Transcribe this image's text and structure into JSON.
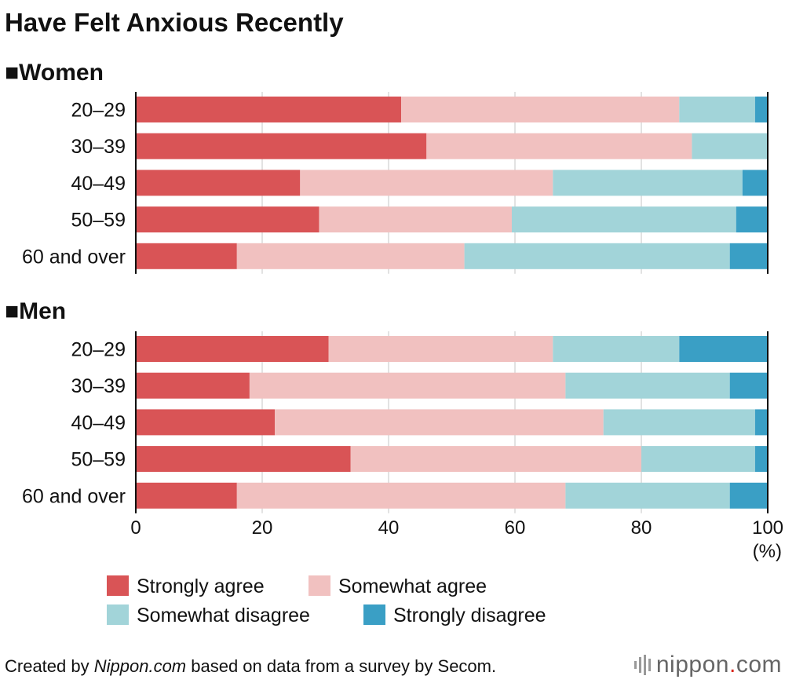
{
  "chart_data": {
    "type": "bar",
    "orientation": "horizontal",
    "stacked": true,
    "title": "Have Felt Anxious Recently",
    "xlim": [
      0,
      100
    ],
    "xticks": [
      "0",
      "20",
      "40",
      "60",
      "80",
      "100"
    ],
    "xunit": "(%)",
    "legend": [
      "Strongly agree",
      "Somewhat agree",
      "Somewhat disagree",
      "Strongly disagree"
    ],
    "colors": [
      "#d95456",
      "#f1c1c0",
      "#a2d4d9",
      "#3a9fc5"
    ],
    "panels": [
      {
        "label": "■Women",
        "categories": [
          "20–29",
          "30–39",
          "40–49",
          "50–59",
          "60 and over"
        ],
        "series": [
          {
            "name": "Strongly agree",
            "values": [
              42,
              46,
              26,
              29,
              16
            ]
          },
          {
            "name": "Somewhat agree",
            "values": [
              44,
              42,
              40,
              30.5,
              36
            ]
          },
          {
            "name": "Somewhat disagree",
            "values": [
              12,
              12,
              30,
              35.5,
              42
            ]
          },
          {
            "name": "Strongly disagree",
            "values": [
              2,
              0,
              4,
              5,
              6
            ]
          }
        ]
      },
      {
        "label": "■Men",
        "categories": [
          "20–29",
          "30–39",
          "40–49",
          "50–59",
          "60 and over"
        ],
        "series": [
          {
            "name": "Strongly agree",
            "values": [
              30.5,
              18,
              22,
              34,
              16
            ]
          },
          {
            "name": "Somewhat agree",
            "values": [
              35.5,
              50,
              52,
              46,
              52
            ]
          },
          {
            "name": "Somewhat disagree",
            "values": [
              20,
              26,
              24,
              18,
              26
            ]
          },
          {
            "name": "Strongly disagree",
            "values": [
              14,
              6,
              2,
              2,
              6
            ]
          }
        ]
      }
    ]
  },
  "footer": {
    "prefix": "Created by ",
    "site": "Nippon.com",
    "suffix": " based on data from a survey by Secom."
  },
  "logo": {
    "name": "nippon",
    "dot": ".",
    "tld": "com"
  }
}
